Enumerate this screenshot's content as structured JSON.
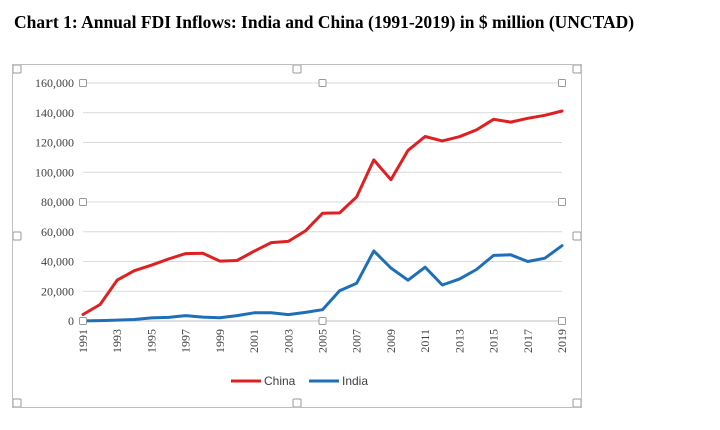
{
  "title": "Chart 1: Annual FDI Inflows: India and China (1991-2019) in $ million (UNCTAD)",
  "chart_data": {
    "type": "line",
    "title": "Chart 1: Annual FDI Inflows: India and China (1991-2019) in $ million (UNCTAD)",
    "xlabel": "",
    "ylabel": "",
    "x": [
      1991,
      1992,
      1993,
      1994,
      1995,
      1996,
      1997,
      1998,
      1999,
      2000,
      2001,
      2002,
      2003,
      2004,
      2005,
      2006,
      2007,
      2008,
      2009,
      2010,
      2011,
      2012,
      2013,
      2014,
      2015,
      2016,
      2017,
      2018,
      2019
    ],
    "x_tick_labels": [
      "1991",
      "1993",
      "1995",
      "1997",
      "1999",
      "2001",
      "2003",
      "2005",
      "2007",
      "2009",
      "2011",
      "2013",
      "2015",
      "2017",
      "2019"
    ],
    "ylim": [
      0,
      160000
    ],
    "y_tick_labels": [
      "0",
      "20,000",
      "40,000",
      "60,000",
      "80,000",
      "100,000",
      "120,000",
      "140,000",
      "160,000"
    ],
    "grid": true,
    "legend_position": "bottom",
    "series": [
      {
        "name": "China",
        "color": "#e02020",
        "values": [
          4400,
          11100,
          27500,
          33800,
          37500,
          41700,
          45300,
          45500,
          40300,
          40700,
          46900,
          52700,
          53500,
          60600,
          72400,
          72700,
          83500,
          108300,
          95000,
          114700,
          124000,
          121100,
          123900,
          128500,
          135600,
          133700,
          136300,
          138300,
          141200
        ]
      },
      {
        "name": "India",
        "color": "#1f6fb8",
        "values": [
          100,
          300,
          600,
          1000,
          2100,
          2400,
          3600,
          2600,
          2200,
          3600,
          5500,
          5600,
          4300,
          5800,
          7600,
          20300,
          25400,
          47100,
          35600,
          27400,
          36200,
          24200,
          28200,
          34600,
          44100,
          44500,
          40000,
          42200,
          50600
        ]
      }
    ]
  }
}
